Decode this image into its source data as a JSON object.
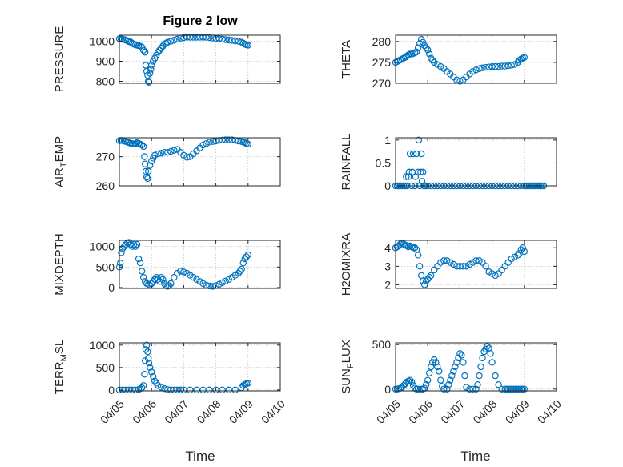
{
  "figure": {
    "title": "Figure 2 low",
    "xlabel": "Time"
  },
  "style": {
    "marker_color": "#0072BD",
    "axis_color": "#262626"
  },
  "chart_data": [
    {
      "type": "scatter",
      "ylabel": "PRESSURE",
      "ylabel_sub": "",
      "ylabel_rest": "",
      "xlim": [
        0,
        5
      ],
      "ylim": [
        790,
        1030
      ],
      "yticks": [
        800,
        900,
        1000
      ],
      "xticks": [
        0,
        1,
        2,
        3,
        4,
        5
      ],
      "xticklabels": [],
      "grid": true,
      "x": [
        0,
        0.05,
        0.1,
        0.15,
        0.2,
        0.25,
        0.3,
        0.35,
        0.4,
        0.45,
        0.5,
        0.55,
        0.6,
        0.65,
        0.7,
        0.75,
        0.8,
        0.82,
        0.85,
        0.88,
        0.9,
        0.92,
        0.95,
        0.98,
        1.0,
        1.05,
        1.1,
        1.15,
        1.2,
        1.25,
        1.3,
        1.35,
        1.4,
        1.45,
        1.5,
        1.6,
        1.7,
        1.8,
        1.9,
        2.0,
        2.1,
        2.2,
        2.3,
        2.4,
        2.5,
        2.6,
        2.7,
        2.8,
        2.9,
        3.0,
        3.1,
        3.2,
        3.3,
        3.4,
        3.5,
        3.6,
        3.7,
        3.8,
        3.85,
        3.9,
        3.95,
        4.0
      ],
      "y": [
        1012,
        1012,
        1010,
        1008,
        1006,
        1002,
        998,
        996,
        990,
        985,
        982,
        980,
        978,
        975,
        970,
        955,
        945,
        880,
        850,
        830,
        800,
        795,
        840,
        860,
        880,
        900,
        915,
        930,
        945,
        955,
        965,
        975,
        985,
        990,
        995,
        1000,
        1005,
        1010,
        1015,
        1018,
        1020,
        1020,
        1020,
        1020,
        1020,
        1020,
        1020,
        1018,
        1016,
        1014,
        1012,
        1010,
        1008,
        1006,
        1004,
        1002,
        1000,
        995,
        990,
        985,
        982,
        980
      ]
    },
    {
      "type": "scatter",
      "ylabel": "THETA",
      "ylabel_sub": "",
      "ylabel_rest": "",
      "xlim": [
        0,
        5
      ],
      "ylim": [
        270,
        281.5
      ],
      "yticks": [
        270,
        275,
        280
      ],
      "xticks": [
        0,
        1,
        2,
        3,
        4,
        5
      ],
      "xticklabels": [],
      "grid": true,
      "x": [
        0,
        0.05,
        0.1,
        0.15,
        0.2,
        0.25,
        0.3,
        0.35,
        0.4,
        0.45,
        0.5,
        0.55,
        0.6,
        0.65,
        0.7,
        0.75,
        0.8,
        0.85,
        0.9,
        0.95,
        1.0,
        1.05,
        1.1,
        1.15,
        1.2,
        1.3,
        1.4,
        1.5,
        1.6,
        1.7,
        1.8,
        1.9,
        2.0,
        2.1,
        2.2,
        2.3,
        2.4,
        2.5,
        2.6,
        2.7,
        2.8,
        2.9,
        3.0,
        3.1,
        3.2,
        3.3,
        3.4,
        3.5,
        3.6,
        3.7,
        3.8,
        3.85,
        3.9,
        3.95,
        4.0
      ],
      "y": [
        275,
        275.2,
        275.4,
        275.6,
        275.8,
        276,
        276.2,
        276.5,
        276.8,
        277,
        277,
        277.1,
        277.3,
        277.5,
        278.5,
        279.5,
        280.5,
        279.8,
        279,
        278.5,
        278,
        277,
        276,
        275.5,
        275,
        274.5,
        274,
        273.5,
        272.8,
        272.2,
        271.5,
        270.8,
        270.5,
        270.8,
        271.5,
        272.2,
        272.8,
        273.2,
        273.5,
        273.7,
        273.8,
        273.9,
        274,
        274,
        274,
        274.1,
        274.1,
        274.2,
        274.3,
        274.5,
        275,
        275.5,
        275.8,
        276,
        276.2
      ]
    },
    {
      "type": "scatter",
      "ylabel": "AIR",
      "ylabel_sub": "T",
      "ylabel_rest": "EMP",
      "xlim": [
        0,
        5
      ],
      "ylim": [
        260,
        276.5
      ],
      "yticks": [
        260,
        270
      ],
      "xticks": [
        0,
        1,
        2,
        3,
        4,
        5
      ],
      "xticklabels": [],
      "grid": true,
      "x": [
        0,
        0.05,
        0.1,
        0.15,
        0.2,
        0.25,
        0.3,
        0.35,
        0.4,
        0.45,
        0.5,
        0.55,
        0.6,
        0.65,
        0.7,
        0.75,
        0.78,
        0.8,
        0.82,
        0.85,
        0.88,
        0.9,
        0.95,
        1.0,
        1.05,
        1.1,
        1.2,
        1.3,
        1.4,
        1.5,
        1.6,
        1.7,
        1.8,
        1.9,
        2.0,
        2.1,
        2.2,
        2.3,
        2.4,
        2.5,
        2.6,
        2.7,
        2.8,
        2.9,
        3.0,
        3.1,
        3.2,
        3.3,
        3.4,
        3.5,
        3.6,
        3.7,
        3.8,
        3.85,
        3.9,
        3.95,
        4.0
      ],
      "y": [
        275.5,
        275.6,
        275.5,
        275.4,
        275.2,
        275,
        274.8,
        274.6,
        274.5,
        274.4,
        274.5,
        274.8,
        274.6,
        274.3,
        274,
        273.5,
        270,
        267.5,
        265,
        263,
        262.5,
        265,
        267,
        268.5,
        269.5,
        270.5,
        271,
        271.2,
        271.5,
        271.5,
        271.8,
        272.2,
        272.5,
        271.5,
        270.5,
        269.8,
        270,
        271,
        272,
        273,
        274,
        274.5,
        275,
        275.2,
        275.4,
        275.6,
        275.7,
        275.8,
        275.8,
        275.8,
        275.6,
        275.4,
        275.2,
        275,
        274.8,
        274.5,
        274.3
      ]
    },
    {
      "type": "scatter",
      "ylabel": "RAINFALL",
      "ylabel_sub": "",
      "ylabel_rest": "",
      "xlim": [
        0,
        5
      ],
      "ylim": [
        0,
        1.05
      ],
      "yticks": [
        0,
        0.5,
        1
      ],
      "xticks": [
        0,
        1,
        2,
        3,
        4,
        5
      ],
      "xticklabels": [],
      "grid": true,
      "x": [
        0,
        0.05,
        0.1,
        0.15,
        0.2,
        0.25,
        0.3,
        0.33,
        0.36,
        0.4,
        0.42,
        0.45,
        0.5,
        0.52,
        0.55,
        0.6,
        0.62,
        0.65,
        0.7,
        0.72,
        0.75,
        0.78,
        0.8,
        0.82,
        0.85,
        0.88,
        0.9,
        0.95,
        1.0,
        1.1,
        1.2,
        1.3,
        1.4,
        1.5,
        1.6,
        1.7,
        1.8,
        1.9,
        2.0,
        2.1,
        2.2,
        2.3,
        2.4,
        2.5,
        2.6,
        2.7,
        2.8,
        2.9,
        3.0,
        3.1,
        3.2,
        3.3,
        3.4,
        3.5,
        3.6,
        3.7,
        3.8,
        3.9,
        4.0,
        4.05,
        4.1,
        4.15,
        4.2,
        4.25,
        4.3,
        4.35,
        4.4,
        4.45,
        4.5,
        4.55,
        4.6
      ],
      "y": [
        0,
        0,
        0,
        0,
        0,
        0,
        0,
        0.2,
        0,
        0.2,
        0.3,
        0.7,
        0,
        0.3,
        0.7,
        0,
        0.2,
        0.7,
        0.3,
        1.0,
        0,
        0.3,
        0.7,
        0.1,
        0.3,
        0,
        0,
        0,
        0,
        0,
        0,
        0,
        0,
        0,
        0,
        0,
        0,
        0,
        0,
        0,
        0,
        0,
        0,
        0,
        0,
        0,
        0,
        0,
        0,
        0,
        0,
        0,
        0,
        0,
        0,
        0,
        0,
        0,
        0,
        0,
        0,
        0,
        0,
        0,
        0,
        0,
        0,
        0,
        0,
        0,
        0
      ]
    },
    {
      "type": "scatter",
      "ylabel": "MIXDEPTH",
      "ylabel_sub": "",
      "ylabel_rest": "",
      "xlim": [
        0,
        5
      ],
      "ylim": [
        -20,
        1150
      ],
      "yticks": [
        0,
        500,
        1000
      ],
      "xticks": [
        0,
        1,
        2,
        3,
        4,
        5
      ],
      "xticklabels": [],
      "grid": true,
      "x": [
        0,
        0.03,
        0.06,
        0.1,
        0.15,
        0.2,
        0.25,
        0.3,
        0.35,
        0.4,
        0.45,
        0.5,
        0.55,
        0.6,
        0.65,
        0.7,
        0.75,
        0.8,
        0.85,
        0.9,
        0.95,
        1.0,
        1.05,
        1.1,
        1.15,
        1.2,
        1.25,
        1.3,
        1.35,
        1.4,
        1.45,
        1.5,
        1.55,
        1.6,
        1.7,
        1.8,
        1.9,
        2.0,
        2.1,
        2.2,
        2.3,
        2.4,
        2.5,
        2.6,
        2.7,
        2.8,
        2.9,
        3.0,
        3.1,
        3.2,
        3.3,
        3.4,
        3.5,
        3.6,
        3.7,
        3.75,
        3.8,
        3.85,
        3.9,
        3.95,
        4.0
      ],
      "y": [
        500,
        600,
        850,
        950,
        1000,
        1050,
        1080,
        1100,
        1050,
        1000,
        1050,
        1000,
        1050,
        700,
        600,
        400,
        250,
        150,
        100,
        80,
        60,
        100,
        150,
        200,
        250,
        200,
        150,
        250,
        200,
        100,
        50,
        30,
        50,
        100,
        250,
        350,
        400,
        380,
        350,
        300,
        250,
        200,
        150,
        100,
        60,
        40,
        30,
        50,
        80,
        120,
        160,
        200,
        250,
        300,
        350,
        400,
        450,
        600,
        700,
        750,
        800
      ]
    },
    {
      "type": "scatter",
      "ylabel": "H2OMIXRA",
      "ylabel_sub": "",
      "ylabel_rest": "",
      "xlim": [
        0,
        5
      ],
      "ylim": [
        1.8,
        4.4
      ],
      "yticks": [
        2,
        3,
        4
      ],
      "xticks": [
        0,
        1,
        2,
        3,
        4,
        5
      ],
      "xticklabels": [],
      "grid": true,
      "x": [
        0,
        0.05,
        0.1,
        0.15,
        0.2,
        0.25,
        0.3,
        0.35,
        0.4,
        0.45,
        0.5,
        0.55,
        0.6,
        0.65,
        0.7,
        0.75,
        0.8,
        0.85,
        0.9,
        0.95,
        1.0,
        1.05,
        1.1,
        1.2,
        1.3,
        1.4,
        1.5,
        1.6,
        1.7,
        1.8,
        1.9,
        2.0,
        2.1,
        2.2,
        2.3,
        2.4,
        2.5,
        2.6,
        2.7,
        2.8,
        2.9,
        3.0,
        3.1,
        3.2,
        3.3,
        3.4,
        3.5,
        3.6,
        3.7,
        3.8,
        3.85,
        3.9,
        3.95,
        4.0
      ],
      "y": [
        4.0,
        4.05,
        4.1,
        4.2,
        4.25,
        4.2,
        4.15,
        4.1,
        4.05,
        4.1,
        4.05,
        4.0,
        4.0,
        3.9,
        3.6,
        3.0,
        2.5,
        2.2,
        2.0,
        2.2,
        2.3,
        2.4,
        2.5,
        2.8,
        3.0,
        3.2,
        3.3,
        3.3,
        3.2,
        3.1,
        3.0,
        3.0,
        3.0,
        3.0,
        3.1,
        3.2,
        3.3,
        3.3,
        3.2,
        3.0,
        2.7,
        2.6,
        2.5,
        2.6,
        2.8,
        3.0,
        3.2,
        3.4,
        3.5,
        3.6,
        3.7,
        3.9,
        4.0,
        3.8
      ]
    },
    {
      "type": "scatter",
      "ylabel": "TERR",
      "ylabel_sub": "M",
      "ylabel_rest": "SL",
      "xlim": [
        0,
        5
      ],
      "ylim": [
        -20,
        1050
      ],
      "yticks": [
        0,
        500,
        1000
      ],
      "xticks": [
        0,
        1,
        2,
        3,
        4,
        5
      ],
      "xticklabels": [
        "04/05",
        "04/06",
        "04/07",
        "04/08",
        "04/09",
        "04/10"
      ],
      "grid": true,
      "x": [
        0,
        0.1,
        0.2,
        0.3,
        0.4,
        0.5,
        0.6,
        0.65,
        0.7,
        0.75,
        0.78,
        0.8,
        0.82,
        0.85,
        0.88,
        0.9,
        0.92,
        0.95,
        1.0,
        1.05,
        1.1,
        1.15,
        1.2,
        1.3,
        1.4,
        1.5,
        1.6,
        1.7,
        1.8,
        1.9,
        2.0,
        2.2,
        2.4,
        2.6,
        2.8,
        3.0,
        3.2,
        3.4,
        3.6,
        3.8,
        3.85,
        3.9,
        3.95,
        4.0
      ],
      "y": [
        0,
        0,
        0,
        0,
        0,
        0,
        10,
        30,
        50,
        100,
        350,
        650,
        900,
        1000,
        850,
        700,
        600,
        500,
        400,
        300,
        200,
        150,
        100,
        60,
        30,
        10,
        0,
        0,
        0,
        0,
        0,
        0,
        0,
        0,
        0,
        0,
        0,
        0,
        0,
        50,
        100,
        120,
        140,
        150
      ]
    },
    {
      "type": "scatter",
      "ylabel": "SUN",
      "ylabel_sub": "F",
      "ylabel_rest": "LUX",
      "xlim": [
        0,
        5
      ],
      "ylim": [
        -20,
        520
      ],
      "yticks": [
        0,
        500
      ],
      "xticks": [
        0,
        1,
        2,
        3,
        4,
        5
      ],
      "xticklabels": [
        "04/05",
        "04/06",
        "04/07",
        "04/08",
        "04/09",
        "04/10"
      ],
      "grid": true,
      "x": [
        0,
        0.05,
        0.1,
        0.15,
        0.2,
        0.25,
        0.3,
        0.35,
        0.4,
        0.45,
        0.5,
        0.55,
        0.6,
        0.65,
        0.7,
        0.8,
        0.85,
        0.9,
        0.95,
        1.0,
        1.05,
        1.1,
        1.15,
        1.2,
        1.25,
        1.3,
        1.35,
        1.4,
        1.45,
        1.5,
        1.6,
        1.65,
        1.7,
        1.75,
        1.8,
        1.85,
        1.9,
        1.95,
        2.0,
        2.05,
        2.1,
        2.15,
        2.2,
        2.3,
        2.4,
        2.5,
        2.55,
        2.6,
        2.65,
        2.7,
        2.75,
        2.8,
        2.85,
        2.9,
        2.95,
        3.0,
        3.1,
        3.2,
        3.3,
        3.4,
        3.45,
        3.5,
        3.55,
        3.6,
        3.65,
        3.7,
        3.75,
        3.8,
        3.85,
        3.9,
        3.95,
        4.0
      ],
      "y": [
        0,
        0,
        5,
        10,
        20,
        40,
        60,
        80,
        90,
        100,
        80,
        40,
        10,
        0,
        0,
        0,
        0,
        10,
        50,
        100,
        180,
        250,
        300,
        330,
        300,
        250,
        200,
        100,
        30,
        0,
        0,
        50,
        100,
        150,
        200,
        250,
        300,
        350,
        400,
        380,
        300,
        150,
        20,
        0,
        0,
        0,
        50,
        150,
        250,
        350,
        420,
        450,
        480,
        460,
        400,
        300,
        150,
        50,
        0,
        0,
        0,
        0,
        0,
        0,
        0,
        0,
        0,
        0,
        0,
        0,
        0,
        0
      ]
    }
  ]
}
